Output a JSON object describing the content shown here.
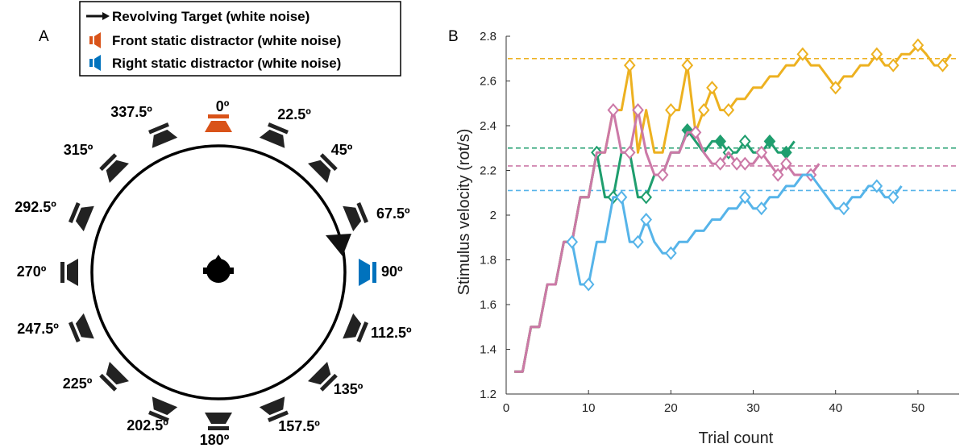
{
  "panel_a": {
    "label": "A",
    "legend": [
      {
        "text": "Revolving Target (white noise)",
        "icon": "arrow-icon",
        "color": "#111111"
      },
      {
        "text": "Front static distractor (white noise)",
        "icon": "speaker-icon",
        "color": "#d95319"
      },
      {
        "text": "Right static distractor (white noise)",
        "icon": "speaker-icon",
        "color": "#0072bd"
      }
    ],
    "speakers": [
      {
        "angle": 0,
        "label": "0º"
      },
      {
        "angle": 22.5,
        "label": "22.5º"
      },
      {
        "angle": 45,
        "label": "45º"
      },
      {
        "angle": 67.5,
        "label": "67.5º"
      },
      {
        "angle": 90,
        "label": "90º"
      },
      {
        "angle": 112.5,
        "label": "112.5º"
      },
      {
        "angle": 135,
        "label": "135º"
      },
      {
        "angle": 157.5,
        "label": "157.5º"
      },
      {
        "angle": 180,
        "label": "180º"
      },
      {
        "angle": 202.5,
        "label": "202.5º"
      },
      {
        "angle": 225,
        "label": "225º"
      },
      {
        "angle": 247.5,
        "label": "247.5º"
      },
      {
        "angle": 270,
        "label": "270º"
      },
      {
        "angle": 292.5,
        "label": "292.5º"
      },
      {
        "angle": 315,
        "label": "315º"
      },
      {
        "angle": 337.5,
        "label": "337.5º"
      }
    ],
    "speaker_color": "#222222",
    "front_color": "#d95319",
    "right_color": "#0072bd"
  },
  "chart_data": {
    "type": "line",
    "panel_label": "B",
    "title": "",
    "xlabel": "Trial count",
    "ylabel": "Stimulus velocity (rot/s)",
    "xlim": [
      0,
      55
    ],
    "ylim": [
      1.2,
      2.8
    ],
    "xticks": [
      0,
      10,
      20,
      30,
      40,
      50
    ],
    "yticks": [
      1.2,
      1.4,
      1.6,
      1.8,
      2,
      2.2,
      2.4,
      2.6,
      2.8
    ],
    "xtick_labels": [
      "0",
      "10",
      "20",
      "30",
      "40",
      "50"
    ],
    "ytick_labels": [
      "1.2",
      "1.4",
      "1.6",
      "1.8",
      "2",
      "2.2",
      "2.4",
      "2.6",
      "2.8"
    ],
    "grid": false,
    "legend": "none",
    "series": [
      {
        "color": "#edb120",
        "threshold": 2.7,
        "values": [
          [
            1,
            1.3
          ],
          [
            2,
            1.3
          ],
          [
            3,
            1.5
          ],
          [
            4,
            1.5
          ],
          [
            5,
            1.69
          ],
          [
            6,
            1.69
          ],
          [
            7,
            1.88
          ],
          [
            8,
            1.88
          ],
          [
            9,
            2.08
          ],
          [
            10,
            2.08
          ],
          [
            11,
            2.28
          ],
          [
            12,
            2.28
          ],
          [
            13,
            2.47
          ],
          [
            14,
            2.47
          ],
          [
            15,
            2.67
          ],
          [
            16,
            2.28
          ],
          [
            17,
            2.47
          ],
          [
            18,
            2.28
          ],
          [
            19,
            2.28
          ],
          [
            20,
            2.47
          ],
          [
            21,
            2.47
          ],
          [
            22,
            2.67
          ],
          [
            23,
            2.37
          ],
          [
            24,
            2.47
          ],
          [
            25,
            2.57
          ],
          [
            26,
            2.47
          ],
          [
            27,
            2.47
          ],
          [
            28,
            2.52
          ],
          [
            29,
            2.52
          ],
          [
            30,
            2.57
          ],
          [
            31,
            2.57
          ],
          [
            32,
            2.62
          ],
          [
            33,
            2.62
          ],
          [
            34,
            2.67
          ],
          [
            35,
            2.67
          ],
          [
            36,
            2.72
          ],
          [
            37,
            2.67
          ],
          [
            38,
            2.67
          ],
          [
            39,
            2.62
          ],
          [
            40,
            2.57
          ],
          [
            41,
            2.62
          ],
          [
            42,
            2.62
          ],
          [
            43,
            2.67
          ],
          [
            44,
            2.67
          ],
          [
            45,
            2.72
          ],
          [
            46,
            2.67
          ],
          [
            47,
            2.67
          ],
          [
            48,
            2.72
          ],
          [
            49,
            2.72
          ],
          [
            50,
            2.76
          ],
          [
            51,
            2.72
          ],
          [
            52,
            2.67
          ],
          [
            53,
            2.67
          ],
          [
            54,
            2.72
          ]
        ],
        "markers": [
          15,
          20,
          22,
          24,
          25,
          27,
          36,
          40,
          45,
          47,
          50,
          53
        ]
      },
      {
        "color": "#1f9e6e",
        "threshold": 2.3,
        "values": [
          [
            1,
            1.3
          ],
          [
            2,
            1.3
          ],
          [
            3,
            1.5
          ],
          [
            4,
            1.5
          ],
          [
            5,
            1.69
          ],
          [
            6,
            1.69
          ],
          [
            7,
            1.88
          ],
          [
            8,
            1.88
          ],
          [
            9,
            2.08
          ],
          [
            10,
            2.08
          ],
          [
            11,
            2.28
          ],
          [
            12,
            2.08
          ],
          [
            13,
            2.08
          ],
          [
            14,
            2.28
          ],
          [
            15,
            2.28
          ],
          [
            16,
            2.08
          ],
          [
            17,
            2.08
          ],
          [
            18,
            2.18
          ],
          [
            19,
            2.18
          ],
          [
            20,
            2.28
          ],
          [
            21,
            2.28
          ],
          [
            22,
            2.38
          ],
          [
            23,
            2.33
          ],
          [
            24,
            2.28
          ],
          [
            25,
            2.33
          ],
          [
            26,
            2.33
          ],
          [
            27,
            2.28
          ],
          [
            28,
            2.28
          ],
          [
            29,
            2.33
          ],
          [
            30,
            2.28
          ],
          [
            31,
            2.28
          ],
          [
            32,
            2.33
          ],
          [
            33,
            2.28
          ],
          [
            34,
            2.28
          ],
          [
            35,
            2.33
          ]
        ],
        "markers": [
          11,
          13,
          17,
          22,
          26,
          27,
          29,
          32,
          34
        ]
      },
      {
        "color": "#cc79a7",
        "threshold": 2.22,
        "values": [
          [
            1,
            1.3
          ],
          [
            2,
            1.3
          ],
          [
            3,
            1.5
          ],
          [
            4,
            1.5
          ],
          [
            5,
            1.69
          ],
          [
            6,
            1.69
          ],
          [
            7,
            1.88
          ],
          [
            8,
            1.88
          ],
          [
            9,
            2.08
          ],
          [
            10,
            2.08
          ],
          [
            11,
            2.28
          ],
          [
            12,
            2.28
          ],
          [
            13,
            2.47
          ],
          [
            14,
            2.28
          ],
          [
            15,
            2.28
          ],
          [
            16,
            2.47
          ],
          [
            17,
            2.28
          ],
          [
            18,
            2.18
          ],
          [
            19,
            2.18
          ],
          [
            20,
            2.28
          ],
          [
            21,
            2.28
          ],
          [
            22,
            2.37
          ],
          [
            23,
            2.37
          ],
          [
            24,
            2.28
          ],
          [
            25,
            2.23
          ],
          [
            26,
            2.23
          ],
          [
            27,
            2.28
          ],
          [
            28,
            2.23
          ],
          [
            29,
            2.23
          ],
          [
            30,
            2.23
          ],
          [
            31,
            2.28
          ],
          [
            32,
            2.23
          ],
          [
            33,
            2.18
          ],
          [
            34,
            2.23
          ],
          [
            35,
            2.18
          ],
          [
            36,
            2.18
          ],
          [
            37,
            2.18
          ],
          [
            38,
            2.23
          ]
        ],
        "markers": [
          13,
          15,
          16,
          19,
          23,
          26,
          28,
          29,
          31,
          33,
          34,
          37
        ]
      },
      {
        "color": "#56b4e9",
        "threshold": 2.11,
        "values": [
          [
            8,
            1.88
          ],
          [
            9,
            1.69
          ],
          [
            10,
            1.69
          ],
          [
            11,
            1.88
          ],
          [
            12,
            1.88
          ],
          [
            13,
            2.08
          ],
          [
            14,
            2.08
          ],
          [
            15,
            1.88
          ],
          [
            16,
            1.88
          ],
          [
            17,
            1.98
          ],
          [
            18,
            1.88
          ],
          [
            19,
            1.83
          ],
          [
            20,
            1.83
          ],
          [
            21,
            1.88
          ],
          [
            22,
            1.88
          ],
          [
            23,
            1.93
          ],
          [
            24,
            1.93
          ],
          [
            25,
            1.98
          ],
          [
            26,
            1.98
          ],
          [
            27,
            2.03
          ],
          [
            28,
            2.03
          ],
          [
            29,
            2.08
          ],
          [
            30,
            2.03
          ],
          [
            31,
            2.03
          ],
          [
            32,
            2.08
          ],
          [
            33,
            2.08
          ],
          [
            34,
            2.13
          ],
          [
            35,
            2.13
          ],
          [
            36,
            2.18
          ],
          [
            37,
            2.18
          ],
          [
            38,
            2.13
          ],
          [
            39,
            2.08
          ],
          [
            40,
            2.03
          ],
          [
            41,
            2.03
          ],
          [
            42,
            2.08
          ],
          [
            43,
            2.08
          ],
          [
            44,
            2.13
          ],
          [
            45,
            2.13
          ],
          [
            46,
            2.08
          ],
          [
            47,
            2.08
          ],
          [
            48,
            2.13
          ]
        ],
        "markers": [
          8,
          10,
          14,
          16,
          17,
          20,
          29,
          31,
          41,
          45,
          47
        ]
      }
    ]
  }
}
